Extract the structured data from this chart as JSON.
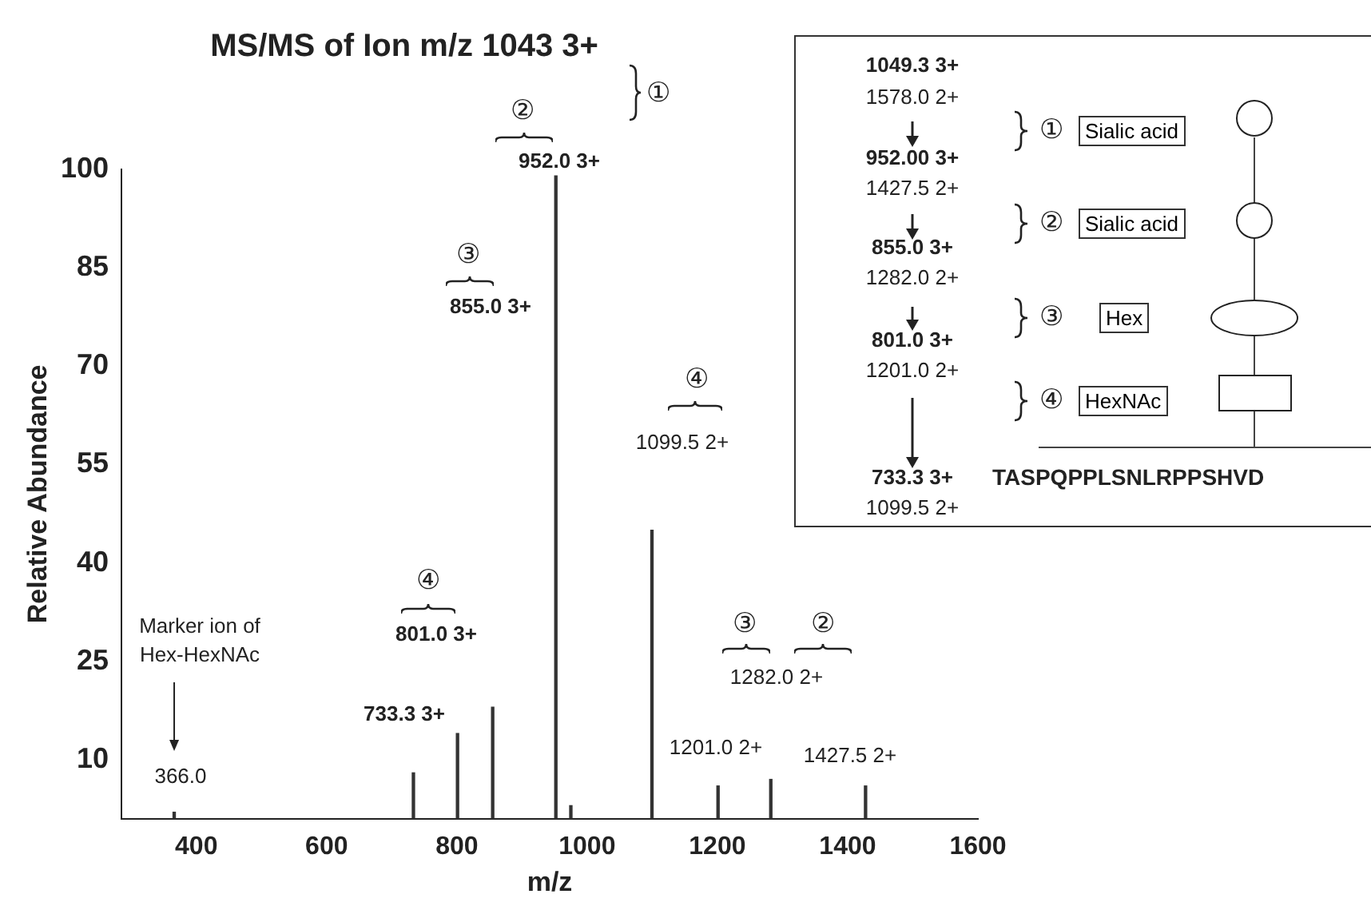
{
  "chart_data": {
    "type": "bar",
    "title": "MS/MS of Ion m/z 1043 3+",
    "xlabel": "m/z",
    "ylabel": "Relative Abundance",
    "x": [
      366,
      733.3,
      801,
      855,
      952,
      975,
      1099.5,
      1201,
      1282,
      1427.5
    ],
    "values": [
      2,
      8,
      14,
      18,
      99,
      3,
      45,
      6,
      7,
      6
    ],
    "color": "#333333",
    "xlim": [
      285,
      1600
    ],
    "xticks": [
      400,
      600,
      800,
      1000,
      1200,
      1400,
      1600
    ],
    "ylim": [
      1,
      100
    ],
    "yticks": [
      10,
      25,
      40,
      55,
      70,
      85,
      100
    ],
    "grid": false,
    "legend": false,
    "annotations": [
      "952.0 3+",
      "②",
      "①",
      "855.0 3+",
      "③",
      "1099.5 2+",
      "④",
      "801.0 3+",
      "④",
      "733.3 3+",
      "1201.0 2+",
      "1282.0 2+",
      "③",
      "②",
      "1427.5 2+",
      "Marker ion of",
      "Hex-HexNAc",
      "366.0",
      "1049.3 3+",
      "1578.0 2+",
      "952.00 3+",
      "1427.5 2+",
      "855.0 3+",
      "1282.0 2+",
      "801.0 3+",
      "1201.0 2+",
      "733.3 3+",
      "1099.5 2+",
      "①",
      "Sialic acid",
      "②",
      "Sialic acid",
      "③",
      "Hex",
      "④",
      "HexNAc",
      "TASPQPPLSNLRPPSHVD"
    ]
  }
}
